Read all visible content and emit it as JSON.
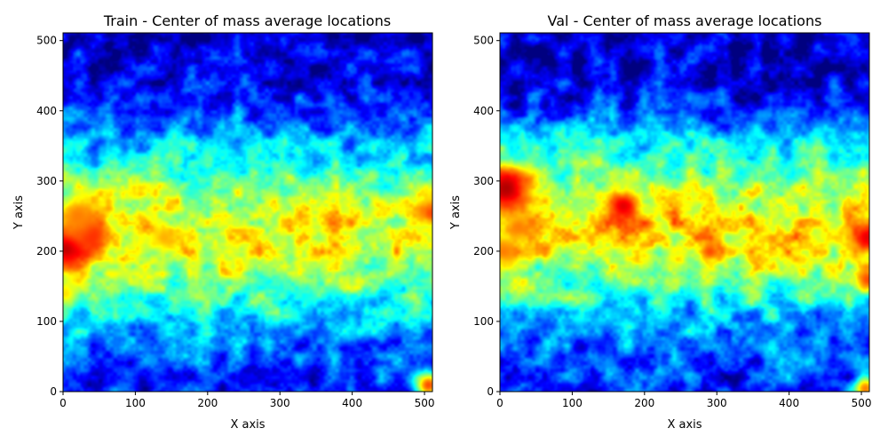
{
  "chart_data": [
    {
      "type": "heatmap",
      "title": "Train - Center of mass average locations",
      "xlabel": "X axis",
      "ylabel": "Y axis",
      "xlim": [
        0,
        511
      ],
      "ylim": [
        0,
        511
      ],
      "xticks": [
        0,
        100,
        200,
        300,
        400,
        500
      ],
      "yticks": [
        0,
        100,
        200,
        300,
        400,
        500
      ],
      "colormap": "jet",
      "description_rows_bottom_to_top": "density per y-band (0=low,1=high)",
      "band_y": [
        0,
        40,
        80,
        120,
        160,
        200,
        240,
        280,
        320,
        360,
        400,
        440,
        480,
        511
      ],
      "band_density": [
        0.15,
        0.2,
        0.28,
        0.38,
        0.52,
        0.6,
        0.62,
        0.55,
        0.4,
        0.3,
        0.2,
        0.12,
        0.08,
        0.08
      ],
      "hotspots": [
        {
          "x": 5,
          "y": 205,
          "r": 22,
          "v": 0.95
        },
        {
          "x": 38,
          "y": 225,
          "r": 18,
          "v": 0.85
        },
        {
          "x": 20,
          "y": 250,
          "r": 20,
          "v": 0.75
        },
        {
          "x": 140,
          "y": 220,
          "r": 14,
          "v": 0.7
        },
        {
          "x": 508,
          "y": 255,
          "r": 12,
          "v": 0.8
        },
        {
          "x": 505,
          "y": 10,
          "r": 14,
          "v": 0.8
        },
        {
          "x": 3,
          "y": 140,
          "r": 14,
          "v": 0.65
        }
      ]
    },
    {
      "type": "heatmap",
      "title": "Val - Center of mass average locations",
      "xlabel": "X axis",
      "ylabel": "Y axis",
      "xlim": [
        0,
        511
      ],
      "ylim": [
        0,
        511
      ],
      "xticks": [
        0,
        100,
        200,
        300,
        400,
        500
      ],
      "yticks": [
        0,
        100,
        200,
        300,
        400,
        500
      ],
      "colormap": "jet",
      "description_rows_bottom_to_top": "density per y-band (0=low,1=high)",
      "band_y": [
        0,
        40,
        80,
        120,
        160,
        200,
        240,
        280,
        320,
        360,
        400,
        440,
        480,
        511
      ],
      "band_density": [
        0.15,
        0.2,
        0.25,
        0.35,
        0.5,
        0.62,
        0.64,
        0.58,
        0.45,
        0.35,
        0.18,
        0.1,
        0.08,
        0.08
      ],
      "hotspots": [
        {
          "x": 8,
          "y": 290,
          "r": 26,
          "v": 0.95
        },
        {
          "x": 170,
          "y": 265,
          "r": 16,
          "v": 0.9
        },
        {
          "x": 25,
          "y": 235,
          "r": 14,
          "v": 0.75
        },
        {
          "x": 290,
          "y": 200,
          "r": 10,
          "v": 0.8
        },
        {
          "x": 508,
          "y": 220,
          "r": 16,
          "v": 0.9
        },
        {
          "x": 508,
          "y": 160,
          "r": 12,
          "v": 0.8
        },
        {
          "x": 505,
          "y": 5,
          "r": 12,
          "v": 0.75
        },
        {
          "x": 5,
          "y": 200,
          "r": 16,
          "v": 0.75
        }
      ]
    }
  ]
}
